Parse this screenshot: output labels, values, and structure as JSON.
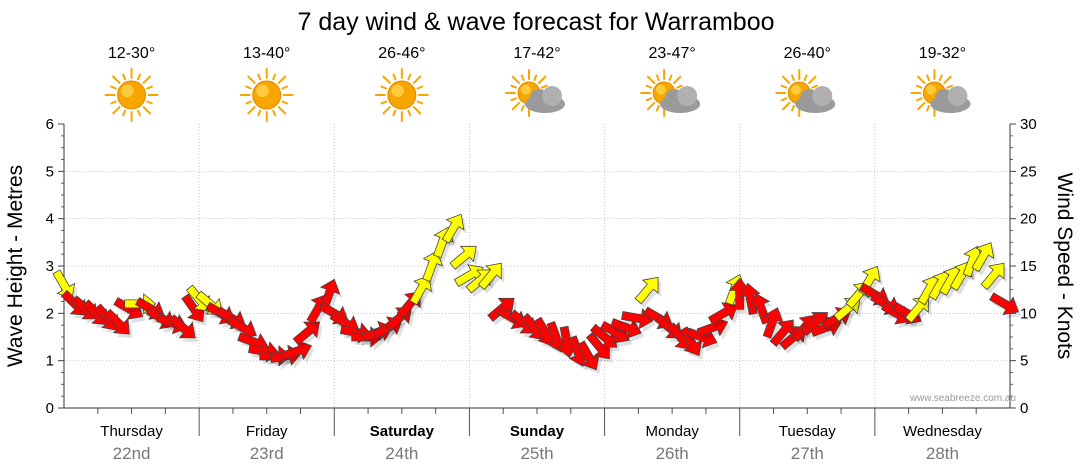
{
  "chart_data": {
    "type": "scatter",
    "title": "7 day wind & wave forecast for Warramboo",
    "ylabel_left": "Wave Height - Metres",
    "ylabel_right": "Wind Speed - Knots",
    "ylim_left": [
      0,
      6
    ],
    "ylim_right": [
      0,
      30
    ],
    "yticks_left": [
      "0",
      "1",
      "2",
      "3",
      "4",
      "5",
      "6"
    ],
    "yticks_right": [
      "0",
      "5",
      "10",
      "15",
      "20",
      "25",
      "30"
    ],
    "grid": true,
    "watermark": "www.seabreeze.com.au",
    "colors": {
      "strong": "#ff0000",
      "moderate": "#ffff00",
      "outline": "#444444",
      "sun": "#f7a600",
      "cloud": "#9a9a9a"
    },
    "days": [
      {
        "name": "Thursday",
        "date": "22nd",
        "temp": "12-30°",
        "icon": "sun-icon",
        "bold": false
      },
      {
        "name": "Friday",
        "date": "23rd",
        "temp": "13-40°",
        "icon": "sun-icon",
        "bold": false
      },
      {
        "name": "Saturday",
        "date": "24th",
        "temp": "26-46°",
        "icon": "sun-icon",
        "bold": true
      },
      {
        "name": "Sunday",
        "date": "25th",
        "temp": "17-42°",
        "icon": "sun-cloud-icon",
        "bold": true
      },
      {
        "name": "Monday",
        "date": "26th",
        "temp": "23-47°",
        "icon": "sun-cloud-icon",
        "bold": false
      },
      {
        "name": "Tuesday",
        "date": "27th",
        "temp": "26-40°",
        "icon": "sun-cloud-icon",
        "bold": false
      },
      {
        "name": "Wednesday",
        "date": "28th",
        "temp": "19-32°",
        "icon": "sun-cloud-icon",
        "bold": false
      }
    ],
    "series": [
      {
        "t": 0.0,
        "knots": 13.0,
        "dir": 330,
        "level": "moderate"
      },
      {
        "t": 0.08,
        "knots": 11.0,
        "dir": 315,
        "level": "strong"
      },
      {
        "t": 0.16,
        "knots": 10.5,
        "dir": 310,
        "level": "strong"
      },
      {
        "t": 0.24,
        "knots": 10.0,
        "dir": 315,
        "level": "strong"
      },
      {
        "t": 0.32,
        "knots": 9.5,
        "dir": 320,
        "level": "strong"
      },
      {
        "t": 0.4,
        "knots": 9.0,
        "dir": 315,
        "level": "strong"
      },
      {
        "t": 0.48,
        "knots": 10.5,
        "dir": 300,
        "level": "strong"
      },
      {
        "t": 0.56,
        "knots": 11.0,
        "dir": 270,
        "level": "moderate"
      },
      {
        "t": 0.64,
        "knots": 10.5,
        "dir": 300,
        "level": "strong"
      },
      {
        "t": 0.72,
        "knots": 9.5,
        "dir": 300,
        "level": "strong"
      },
      {
        "t": 0.8,
        "knots": 9.0,
        "dir": 290,
        "level": "strong"
      },
      {
        "t": 0.88,
        "knots": 8.5,
        "dir": 310,
        "level": "strong"
      },
      {
        "t": 0.96,
        "knots": 10.5,
        "dir": 325,
        "level": "strong"
      },
      {
        "t": 1.0,
        "knots": 11.5,
        "dir": 320,
        "level": "moderate"
      },
      {
        "t": 1.08,
        "knots": 11.0,
        "dir": 310,
        "level": "moderate"
      },
      {
        "t": 1.16,
        "knots": 10.0,
        "dir": 300,
        "level": "strong"
      },
      {
        "t": 1.24,
        "knots": 9.5,
        "dir": 300,
        "level": "strong"
      },
      {
        "t": 1.32,
        "knots": 8.5,
        "dir": 300,
        "level": "strong"
      },
      {
        "t": 1.4,
        "knots": 7.0,
        "dir": 290,
        "level": "strong"
      },
      {
        "t": 1.48,
        "knots": 6.0,
        "dir": 280,
        "level": "strong"
      },
      {
        "t": 1.56,
        "knots": 5.5,
        "dir": 270,
        "level": "strong"
      },
      {
        "t": 1.64,
        "knots": 5.5,
        "dir": 260,
        "level": "strong"
      },
      {
        "t": 1.72,
        "knots": 6.0,
        "dir": 250,
        "level": "strong"
      },
      {
        "t": 1.8,
        "knots": 8.0,
        "dir": 230,
        "level": "strong"
      },
      {
        "t": 1.88,
        "knots": 10.5,
        "dir": 210,
        "level": "strong"
      },
      {
        "t": 1.96,
        "knots": 12.0,
        "dir": 200,
        "level": "strong"
      },
      {
        "t": 2.0,
        "knots": 10.0,
        "dir": 300,
        "level": "strong"
      },
      {
        "t": 2.08,
        "knots": 9.0,
        "dir": 300,
        "level": "strong"
      },
      {
        "t": 2.16,
        "knots": 8.0,
        "dir": 280,
        "level": "strong"
      },
      {
        "t": 2.24,
        "knots": 7.5,
        "dir": 270,
        "level": "strong"
      },
      {
        "t": 2.32,
        "knots": 8.0,
        "dir": 250,
        "level": "strong"
      },
      {
        "t": 2.4,
        "knots": 8.5,
        "dir": 240,
        "level": "strong"
      },
      {
        "t": 2.48,
        "knots": 9.5,
        "dir": 230,
        "level": "strong"
      },
      {
        "t": 2.56,
        "knots": 11.0,
        "dir": 220,
        "level": "strong"
      },
      {
        "t": 2.64,
        "knots": 12.5,
        "dir": 210,
        "level": "moderate"
      },
      {
        "t": 2.72,
        "knots": 15.0,
        "dir": 200,
        "level": "moderate"
      },
      {
        "t": 2.8,
        "knots": 17.5,
        "dir": 200,
        "level": "moderate"
      },
      {
        "t": 2.88,
        "knots": 19.0,
        "dir": 210,
        "level": "moderate"
      },
      {
        "t": 2.96,
        "knots": 16.0,
        "dir": 230,
        "level": "moderate"
      },
      {
        "t": 3.0,
        "knots": 14.0,
        "dir": 240,
        "level": "moderate"
      },
      {
        "t": 3.08,
        "knots": 13.5,
        "dir": 230,
        "level": "moderate"
      },
      {
        "t": 3.16,
        "knots": 14.0,
        "dir": 220,
        "level": "moderate"
      },
      {
        "t": 3.24,
        "knots": 10.5,
        "dir": 230,
        "level": "strong"
      },
      {
        "t": 3.32,
        "knots": 9.5,
        "dir": 300,
        "level": "strong"
      },
      {
        "t": 3.4,
        "knots": 9.0,
        "dir": 310,
        "level": "strong"
      },
      {
        "t": 3.48,
        "knots": 8.5,
        "dir": 320,
        "level": "strong"
      },
      {
        "t": 3.56,
        "knots": 8.0,
        "dir": 330,
        "level": "strong"
      },
      {
        "t": 3.64,
        "knots": 7.5,
        "dir": 340,
        "level": "strong"
      },
      {
        "t": 3.72,
        "knots": 7.0,
        "dir": 350,
        "level": "strong"
      },
      {
        "t": 3.8,
        "knots": 6.0,
        "dir": 340,
        "level": "strong"
      },
      {
        "t": 3.88,
        "knots": 5.5,
        "dir": 330,
        "level": "strong"
      },
      {
        "t": 3.96,
        "knots": 6.5,
        "dir": 320,
        "level": "strong"
      },
      {
        "t": 4.0,
        "knots": 7.5,
        "dir": 310,
        "level": "strong"
      },
      {
        "t": 4.08,
        "knots": 8.0,
        "dir": 300,
        "level": "strong"
      },
      {
        "t": 4.16,
        "knots": 8.5,
        "dir": 290,
        "level": "strong"
      },
      {
        "t": 4.24,
        "knots": 9.5,
        "dir": 280,
        "level": "strong"
      },
      {
        "t": 4.32,
        "knots": 12.5,
        "dir": 220,
        "level": "moderate"
      },
      {
        "t": 4.4,
        "knots": 9.5,
        "dir": 300,
        "level": "strong"
      },
      {
        "t": 4.48,
        "knots": 8.5,
        "dir": 310,
        "level": "strong"
      },
      {
        "t": 4.56,
        "knots": 7.5,
        "dir": 320,
        "level": "strong"
      },
      {
        "t": 4.64,
        "knots": 7.0,
        "dir": 330,
        "level": "strong"
      },
      {
        "t": 4.72,
        "knots": 7.5,
        "dir": 290,
        "level": "strong"
      },
      {
        "t": 4.8,
        "knots": 8.5,
        "dir": 250,
        "level": "strong"
      },
      {
        "t": 4.88,
        "knots": 10.0,
        "dir": 240,
        "level": "strong"
      },
      {
        "t": 4.96,
        "knots": 12.5,
        "dir": 200,
        "level": "moderate"
      },
      {
        "t": 5.0,
        "knots": 12.0,
        "dir": 180,
        "level": "strong"
      },
      {
        "t": 5.08,
        "knots": 11.5,
        "dir": 170,
        "level": "strong"
      },
      {
        "t": 5.16,
        "knots": 10.5,
        "dir": 160,
        "level": "strong"
      },
      {
        "t": 5.24,
        "knots": 9.0,
        "dir": 200,
        "level": "strong"
      },
      {
        "t": 5.32,
        "knots": 8.0,
        "dir": 220,
        "level": "strong"
      },
      {
        "t": 5.4,
        "knots": 7.5,
        "dir": 230,
        "level": "strong"
      },
      {
        "t": 5.48,
        "knots": 8.5,
        "dir": 220,
        "level": "strong"
      },
      {
        "t": 5.56,
        "knots": 9.0,
        "dir": 230,
        "level": "strong"
      },
      {
        "t": 5.64,
        "knots": 8.5,
        "dir": 250,
        "level": "strong"
      },
      {
        "t": 5.72,
        "knots": 9.5,
        "dir": 240,
        "level": "strong"
      },
      {
        "t": 5.8,
        "knots": 10.5,
        "dir": 230,
        "level": "moderate"
      },
      {
        "t": 5.88,
        "knots": 12.0,
        "dir": 220,
        "level": "moderate"
      },
      {
        "t": 5.96,
        "knots": 13.5,
        "dir": 210,
        "level": "moderate"
      },
      {
        "t": 6.0,
        "knots": 12.0,
        "dir": 300,
        "level": "strong"
      },
      {
        "t": 6.08,
        "knots": 11.0,
        "dir": 300,
        "level": "strong"
      },
      {
        "t": 6.16,
        "knots": 10.0,
        "dir": 300,
        "level": "strong"
      },
      {
        "t": 6.24,
        "knots": 10.0,
        "dir": 300,
        "level": "strong"
      },
      {
        "t": 6.32,
        "knots": 10.5,
        "dir": 220,
        "level": "moderate"
      },
      {
        "t": 6.4,
        "knots": 12.5,
        "dir": 210,
        "level": "moderate"
      },
      {
        "t": 6.48,
        "knots": 13.0,
        "dir": 210,
        "level": "moderate"
      },
      {
        "t": 6.56,
        "knots": 13.5,
        "dir": 210,
        "level": "moderate"
      },
      {
        "t": 6.64,
        "knots": 14.0,
        "dir": 210,
        "level": "moderate"
      },
      {
        "t": 6.72,
        "knots": 15.5,
        "dir": 200,
        "level": "moderate"
      },
      {
        "t": 6.8,
        "knots": 16.0,
        "dir": 210,
        "level": "moderate"
      },
      {
        "t": 6.88,
        "knots": 14.0,
        "dir": 220,
        "level": "moderate"
      },
      {
        "t": 6.96,
        "knots": 11.0,
        "dir": 300,
        "level": "strong"
      }
    ]
  }
}
